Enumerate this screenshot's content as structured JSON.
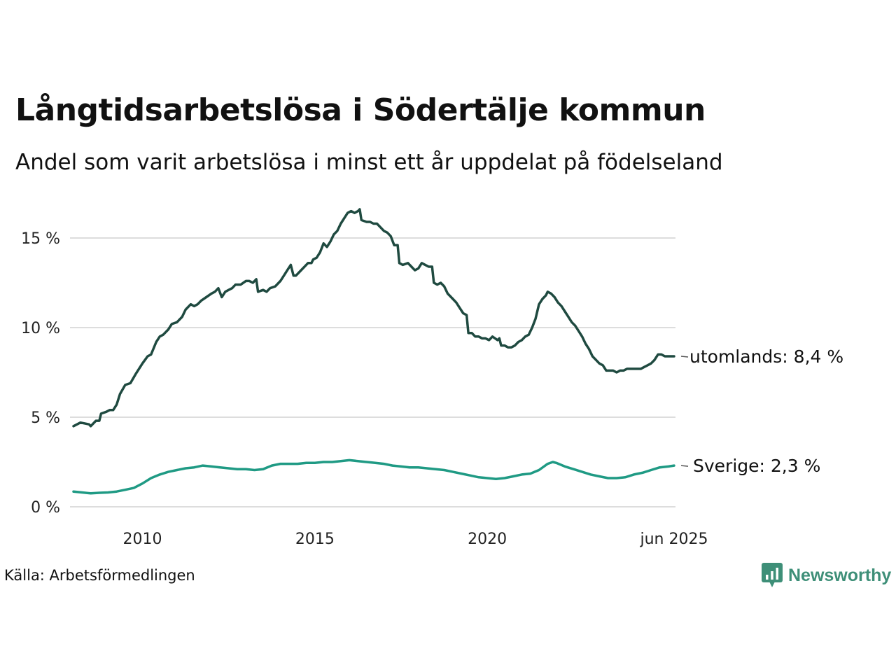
{
  "header": {
    "title": "Långtidsarbetslösa i Södertälje kommun",
    "subtitle": "Andel som varit arbetslösa i minst ett år uppdelat på födelseland"
  },
  "footer": {
    "source": "Källa: Arbetsförmedlingen",
    "brand": "Newsworthy",
    "brand_color": "#3e8f78",
    "brand_icon": "chart-bubble-icon"
  },
  "chart_data": {
    "type": "line",
    "x_start": 2008.0,
    "x_end": 2025.417,
    "ylim": [
      0,
      17
    ],
    "y_ticks": [
      0,
      5,
      10,
      15
    ],
    "y_tick_labels": [
      "0 %",
      "5 %",
      "10 %",
      "15 %"
    ],
    "x_ticks": [
      2010,
      2015,
      2020,
      2025.417
    ],
    "x_tick_labels": [
      "2010",
      "2015",
      "2020",
      "jun 2025"
    ],
    "grid": true,
    "grid_color": "#dddddd",
    "series": [
      {
        "name": "utomlands",
        "label": "utomlands: 8,4 %",
        "color": "#1f4a40",
        "points": [
          [
            2008.0,
            4.5
          ],
          [
            2008.2,
            4.7
          ],
          [
            2008.45,
            4.6
          ],
          [
            2008.5,
            4.5
          ],
          [
            2008.65,
            4.8
          ],
          [
            2008.75,
            4.8
          ],
          [
            2008.8,
            5.2
          ],
          [
            2008.95,
            5.3
          ],
          [
            2009.05,
            5.4
          ],
          [
            2009.15,
            5.4
          ],
          [
            2009.25,
            5.7
          ],
          [
            2009.35,
            6.3
          ],
          [
            2009.5,
            6.8
          ],
          [
            2009.65,
            6.9
          ],
          [
            2009.8,
            7.4
          ],
          [
            2010.0,
            8.0
          ],
          [
            2010.15,
            8.4
          ],
          [
            2010.25,
            8.5
          ],
          [
            2010.4,
            9.2
          ],
          [
            2010.5,
            9.5
          ],
          [
            2010.6,
            9.6
          ],
          [
            2010.75,
            9.9
          ],
          [
            2010.85,
            10.2
          ],
          [
            2011.0,
            10.3
          ],
          [
            2011.15,
            10.6
          ],
          [
            2011.25,
            11.0
          ],
          [
            2011.4,
            11.3
          ],
          [
            2011.5,
            11.2
          ],
          [
            2011.6,
            11.3
          ],
          [
            2011.7,
            11.5
          ],
          [
            2011.85,
            11.7
          ],
          [
            2012.0,
            11.9
          ],
          [
            2012.1,
            12.0
          ],
          [
            2012.2,
            12.2
          ],
          [
            2012.3,
            11.7
          ],
          [
            2012.4,
            12.0
          ],
          [
            2012.5,
            12.1
          ],
          [
            2012.6,
            12.2
          ],
          [
            2012.7,
            12.4
          ],
          [
            2012.85,
            12.4
          ],
          [
            2013.0,
            12.6
          ],
          [
            2013.1,
            12.6
          ],
          [
            2013.2,
            12.5
          ],
          [
            2013.3,
            12.7
          ],
          [
            2013.35,
            12.0
          ],
          [
            2013.5,
            12.1
          ],
          [
            2013.6,
            12.0
          ],
          [
            2013.7,
            12.2
          ],
          [
            2013.85,
            12.3
          ],
          [
            2014.0,
            12.6
          ],
          [
            2014.1,
            12.9
          ],
          [
            2014.2,
            13.2
          ],
          [
            2014.3,
            13.5
          ],
          [
            2014.38,
            12.9
          ],
          [
            2014.45,
            12.9
          ],
          [
            2014.55,
            13.1
          ],
          [
            2014.65,
            13.3
          ],
          [
            2014.8,
            13.6
          ],
          [
            2014.9,
            13.6
          ],
          [
            2014.95,
            13.8
          ],
          [
            2015.05,
            13.9
          ],
          [
            2015.15,
            14.2
          ],
          [
            2015.25,
            14.7
          ],
          [
            2015.35,
            14.5
          ],
          [
            2015.45,
            14.8
          ],
          [
            2015.55,
            15.2
          ],
          [
            2015.65,
            15.4
          ],
          [
            2015.75,
            15.8
          ],
          [
            2015.85,
            16.1
          ],
          [
            2015.95,
            16.4
          ],
          [
            2016.05,
            16.5
          ],
          [
            2016.15,
            16.4
          ],
          [
            2016.25,
            16.5
          ],
          [
            2016.3,
            16.6
          ],
          [
            2016.35,
            16.0
          ],
          [
            2016.5,
            15.9
          ],
          [
            2016.6,
            15.9
          ],
          [
            2016.7,
            15.8
          ],
          [
            2016.8,
            15.8
          ],
          [
            2016.9,
            15.6
          ],
          [
            2017.0,
            15.4
          ],
          [
            2017.1,
            15.3
          ],
          [
            2017.2,
            15.1
          ],
          [
            2017.3,
            14.6
          ],
          [
            2017.4,
            14.6
          ],
          [
            2017.45,
            13.6
          ],
          [
            2017.55,
            13.5
          ],
          [
            2017.7,
            13.6
          ],
          [
            2017.8,
            13.4
          ],
          [
            2017.9,
            13.2
          ],
          [
            2018.0,
            13.3
          ],
          [
            2018.1,
            13.6
          ],
          [
            2018.2,
            13.5
          ],
          [
            2018.3,
            13.4
          ],
          [
            2018.4,
            13.4
          ],
          [
            2018.45,
            12.5
          ],
          [
            2018.55,
            12.4
          ],
          [
            2018.65,
            12.5
          ],
          [
            2018.75,
            12.3
          ],
          [
            2018.85,
            11.9
          ],
          [
            2019.0,
            11.6
          ],
          [
            2019.1,
            11.4
          ],
          [
            2019.2,
            11.1
          ],
          [
            2019.3,
            10.8
          ],
          [
            2019.4,
            10.7
          ],
          [
            2019.45,
            9.7
          ],
          [
            2019.55,
            9.7
          ],
          [
            2019.65,
            9.5
          ],
          [
            2019.75,
            9.5
          ],
          [
            2019.85,
            9.4
          ],
          [
            2019.95,
            9.4
          ],
          [
            2020.05,
            9.3
          ],
          [
            2020.15,
            9.5
          ],
          [
            2020.3,
            9.3
          ],
          [
            2020.35,
            9.4
          ],
          [
            2020.4,
            9.0
          ],
          [
            2020.5,
            9.0
          ],
          [
            2020.6,
            8.9
          ],
          [
            2020.7,
            8.9
          ],
          [
            2020.8,
            9.0
          ],
          [
            2020.9,
            9.2
          ],
          [
            2021.0,
            9.3
          ],
          [
            2021.1,
            9.5
          ],
          [
            2021.2,
            9.6
          ],
          [
            2021.3,
            10.0
          ],
          [
            2021.4,
            10.5
          ],
          [
            2021.5,
            11.3
          ],
          [
            2021.6,
            11.6
          ],
          [
            2021.7,
            11.8
          ],
          [
            2021.75,
            12.0
          ],
          [
            2021.85,
            11.9
          ],
          [
            2021.95,
            11.7
          ],
          [
            2022.05,
            11.4
          ],
          [
            2022.15,
            11.2
          ],
          [
            2022.25,
            10.9
          ],
          [
            2022.35,
            10.6
          ],
          [
            2022.45,
            10.3
          ],
          [
            2022.55,
            10.1
          ],
          [
            2022.65,
            9.8
          ],
          [
            2022.75,
            9.5
          ],
          [
            2022.85,
            9.1
          ],
          [
            2022.95,
            8.8
          ],
          [
            2023.05,
            8.4
          ],
          [
            2023.15,
            8.2
          ],
          [
            2023.25,
            8.0
          ],
          [
            2023.35,
            7.9
          ],
          [
            2023.45,
            7.6
          ],
          [
            2023.55,
            7.6
          ],
          [
            2023.65,
            7.6
          ],
          [
            2023.75,
            7.5
          ],
          [
            2023.85,
            7.6
          ],
          [
            2023.95,
            7.6
          ],
          [
            2024.05,
            7.7
          ],
          [
            2024.15,
            7.7
          ],
          [
            2024.25,
            7.7
          ],
          [
            2024.35,
            7.7
          ],
          [
            2024.45,
            7.7
          ],
          [
            2024.55,
            7.8
          ],
          [
            2024.65,
            7.9
          ],
          [
            2024.75,
            8.0
          ],
          [
            2024.85,
            8.2
          ],
          [
            2024.95,
            8.5
          ],
          [
            2025.05,
            8.5
          ],
          [
            2025.15,
            8.4
          ],
          [
            2025.25,
            8.4
          ],
          [
            2025.35,
            8.4
          ],
          [
            2025.417,
            8.4
          ]
        ]
      },
      {
        "name": "Sverige",
        "label": "Sverige: 2,3 %",
        "color": "#1f9a84",
        "points": [
          [
            2008.0,
            0.85
          ],
          [
            2008.25,
            0.8
          ],
          [
            2008.5,
            0.75
          ],
          [
            2008.75,
            0.78
          ],
          [
            2009.0,
            0.8
          ],
          [
            2009.25,
            0.85
          ],
          [
            2009.5,
            0.95
          ],
          [
            2009.75,
            1.05
          ],
          [
            2010.0,
            1.3
          ],
          [
            2010.25,
            1.6
          ],
          [
            2010.5,
            1.8
          ],
          [
            2010.75,
            1.95
          ],
          [
            2011.0,
            2.05
          ],
          [
            2011.25,
            2.15
          ],
          [
            2011.5,
            2.2
          ],
          [
            2011.75,
            2.3
          ],
          [
            2012.0,
            2.25
          ],
          [
            2012.25,
            2.2
          ],
          [
            2012.5,
            2.15
          ],
          [
            2012.75,
            2.1
          ],
          [
            2013.0,
            2.1
          ],
          [
            2013.25,
            2.05
          ],
          [
            2013.5,
            2.1
          ],
          [
            2013.75,
            2.3
          ],
          [
            2014.0,
            2.4
          ],
          [
            2014.25,
            2.4
          ],
          [
            2014.5,
            2.4
          ],
          [
            2014.75,
            2.45
          ],
          [
            2015.0,
            2.45
          ],
          [
            2015.25,
            2.5
          ],
          [
            2015.5,
            2.5
          ],
          [
            2015.75,
            2.55
          ],
          [
            2016.0,
            2.6
          ],
          [
            2016.25,
            2.55
          ],
          [
            2016.5,
            2.5
          ],
          [
            2016.75,
            2.45
          ],
          [
            2017.0,
            2.4
          ],
          [
            2017.25,
            2.3
          ],
          [
            2017.5,
            2.25
          ],
          [
            2017.75,
            2.2
          ],
          [
            2018.0,
            2.2
          ],
          [
            2018.25,
            2.15
          ],
          [
            2018.5,
            2.1
          ],
          [
            2018.75,
            2.05
          ],
          [
            2019.0,
            1.95
          ],
          [
            2019.25,
            1.85
          ],
          [
            2019.5,
            1.75
          ],
          [
            2019.75,
            1.65
          ],
          [
            2020.0,
            1.6
          ],
          [
            2020.25,
            1.55
          ],
          [
            2020.5,
            1.6
          ],
          [
            2020.75,
            1.7
          ],
          [
            2021.0,
            1.8
          ],
          [
            2021.25,
            1.85
          ],
          [
            2021.5,
            2.05
          ],
          [
            2021.75,
            2.4
          ],
          [
            2021.9,
            2.5
          ],
          [
            2022.0,
            2.45
          ],
          [
            2022.25,
            2.25
          ],
          [
            2022.5,
            2.1
          ],
          [
            2022.75,
            1.95
          ],
          [
            2023.0,
            1.8
          ],
          [
            2023.25,
            1.7
          ],
          [
            2023.5,
            1.6
          ],
          [
            2023.75,
            1.6
          ],
          [
            2024.0,
            1.65
          ],
          [
            2024.25,
            1.8
          ],
          [
            2024.5,
            1.9
          ],
          [
            2024.75,
            2.05
          ],
          [
            2025.0,
            2.2
          ],
          [
            2025.25,
            2.25
          ],
          [
            2025.417,
            2.3
          ]
        ]
      }
    ]
  }
}
